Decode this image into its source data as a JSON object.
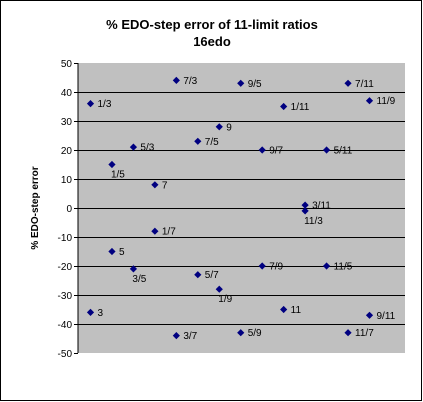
{
  "chart_data": {
    "type": "scatter",
    "title": "% EDO-step error of 11-limit ratios",
    "subtitle": "16edo",
    "ylabel": "% EDO-step error",
    "xlabel": "",
    "ylim": [
      -50,
      50
    ],
    "yticks": [
      "50",
      "40",
      "30",
      "20",
      "10",
      "0",
      "-10",
      "-20",
      "-30",
      "-40",
      "-50"
    ],
    "grid": "horizontal",
    "legend": "none",
    "colors": {
      "plot_bg": "#c0c0c0",
      "marker": "#000080",
      "grid": "#000000"
    },
    "points": [
      {
        "label": "1/3",
        "x": 1,
        "y": 36
      },
      {
        "label": "3",
        "x": 1,
        "y": -36
      },
      {
        "label": "1/5",
        "x": 2,
        "y": 15
      },
      {
        "label": "5",
        "x": 2,
        "y": -15
      },
      {
        "label": "5/3",
        "x": 3,
        "y": 21
      },
      {
        "label": "3/5",
        "x": 3,
        "y": -21
      },
      {
        "label": "7",
        "x": 4,
        "y": 8
      },
      {
        "label": "1/7",
        "x": 4,
        "y": -8
      },
      {
        "label": "7/3",
        "x": 5,
        "y": 44
      },
      {
        "label": "3/7",
        "x": 5,
        "y": -44
      },
      {
        "label": "7/5",
        "x": 6,
        "y": 23
      },
      {
        "label": "5/7",
        "x": 6,
        "y": -23
      },
      {
        "label": "9",
        "x": 7,
        "y": 28
      },
      {
        "label": "1/9",
        "x": 7,
        "y": -28
      },
      {
        "label": "9/5",
        "x": 8,
        "y": 43
      },
      {
        "label": "5/9",
        "x": 8,
        "y": -43
      },
      {
        "label": "9/7",
        "x": 9,
        "y": 20
      },
      {
        "label": "7/9",
        "x": 9,
        "y": -20
      },
      {
        "label": "1/11",
        "x": 10,
        "y": 35
      },
      {
        "label": "11",
        "x": 10,
        "y": -35
      },
      {
        "label": "3/11",
        "x": 11,
        "y": 1
      },
      {
        "label": "11/3",
        "x": 11,
        "y": -1
      },
      {
        "label": "5/11",
        "x": 12,
        "y": 20
      },
      {
        "label": "11/5",
        "x": 12,
        "y": -20
      },
      {
        "label": "7/11",
        "x": 13,
        "y": 43
      },
      {
        "label": "11/7",
        "x": 13,
        "y": -43
      },
      {
        "label": "11/9",
        "x": 14,
        "y": 37
      },
      {
        "label": "9/11",
        "x": 14,
        "y": -37
      }
    ]
  }
}
